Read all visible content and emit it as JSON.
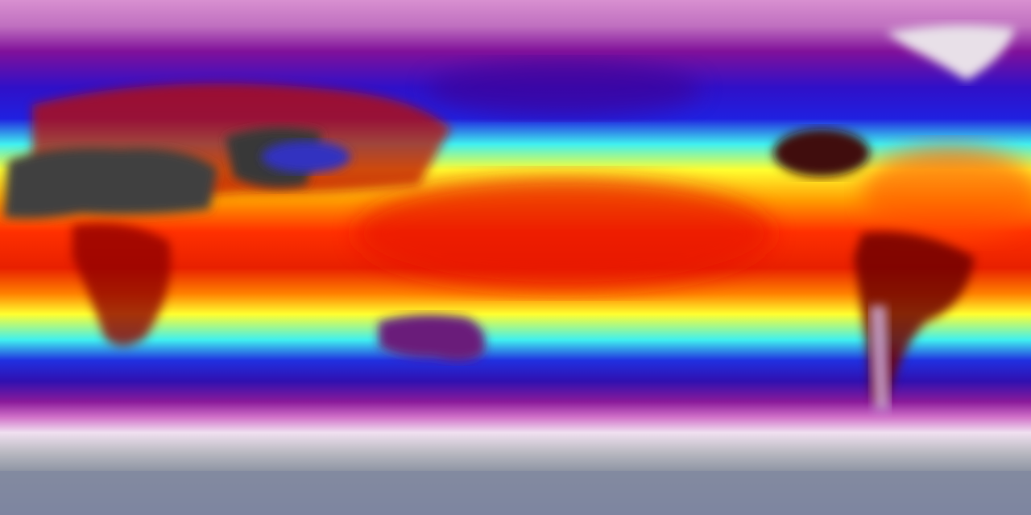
{
  "map": {
    "projection": "equirectangular",
    "colormap": [
      "#f0f0f0",
      "#d070c8",
      "#8a1a9a",
      "#2010d0",
      "#30f0ff",
      "#ffff20",
      "#ff9a00",
      "#ff2000",
      "#b00000",
      "#300000",
      "#404040"
    ],
    "colors": {
      "polar_north": "#d890d0",
      "subpolar": "#8a1a9a",
      "midlat_cold": "#2020d0",
      "temperate": "#40f0f0",
      "warm": "#ffff30",
      "hot": "#ff4000",
      "equatorial": "#e02000",
      "desert_land": "#505050",
      "antarctica": "#8890a0",
      "greenland": "#e8e0e8"
    }
  }
}
